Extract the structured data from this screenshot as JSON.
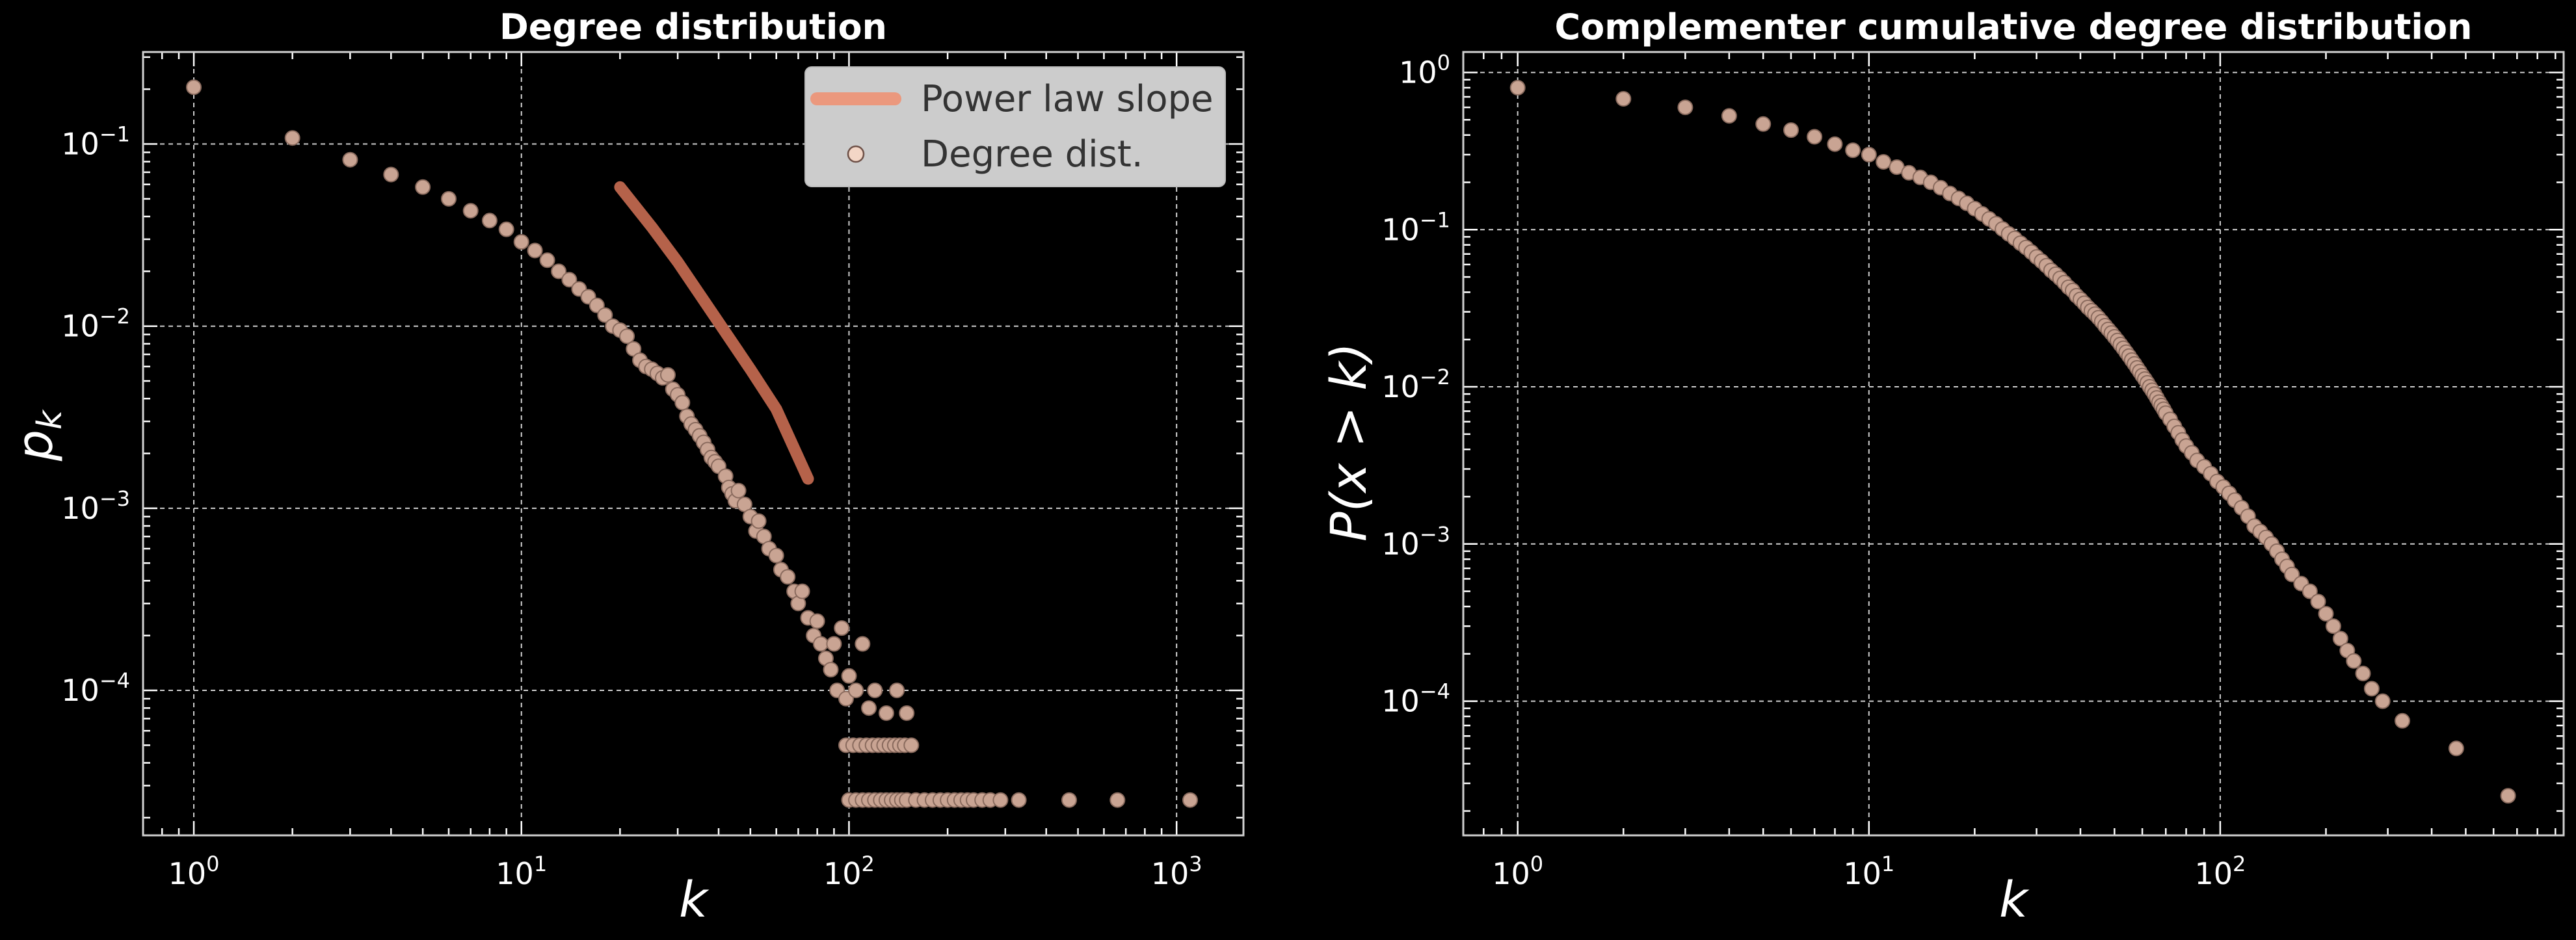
{
  "colors": {
    "background": "#000000",
    "marker_fill": "#c9a493",
    "marker_edge": "#8a6b5e",
    "fit_line": "#b5624a",
    "legend_line": "#eb987d",
    "legend_box": "#cccccc",
    "text": "#ffffff",
    "grid": "#d0d0d0"
  },
  "chart_data": [
    {
      "type": "scatter",
      "title": "Degree distribution",
      "xlabel": "k",
      "ylabel": "p_k",
      "xscale": "log",
      "yscale": "log",
      "xlim": [
        0.7,
        1600
      ],
      "ylim": [
        1.6e-05,
        0.32
      ],
      "x_ticks": [
        1,
        10,
        100,
        1000
      ],
      "x_tick_labels": [
        "10^0",
        "10^1",
        "10^2",
        "10^3"
      ],
      "y_ticks": [
        0.1,
        0.01,
        0.001,
        0.0001
      ],
      "y_tick_labels": [
        "10^-1",
        "10^-2",
        "10^-3",
        "10^-4"
      ],
      "grid": true,
      "legend_position": "top-right",
      "legend": [
        "Power law slope",
        "Degree dist."
      ],
      "series": [
        {
          "name": "Power law slope",
          "kind": "line",
          "points": [
            [
              20,
              0.058
            ],
            [
              25,
              0.035
            ],
            [
              30,
              0.0225
            ],
            [
              40,
              0.0105
            ],
            [
              50,
              0.0058
            ],
            [
              60,
              0.0035
            ],
            [
              75,
              0.00145
            ]
          ]
        },
        {
          "name": "Degree dist.",
          "kind": "scatter",
          "points": [
            [
              1,
              0.205
            ],
            [
              2,
              0.108
            ],
            [
              3,
              0.082
            ],
            [
              4,
              0.068
            ],
            [
              5,
              0.058
            ],
            [
              6,
              0.05
            ],
            [
              7,
              0.043
            ],
            [
              8,
              0.038
            ],
            [
              9,
              0.034
            ],
            [
              10,
              0.029
            ],
            [
              11,
              0.026
            ],
            [
              12,
              0.023
            ],
            [
              13,
              0.02
            ],
            [
              14,
              0.018
            ],
            [
              15,
              0.016
            ],
            [
              16,
              0.0145
            ],
            [
              17,
              0.013
            ],
            [
              18,
              0.0115
            ],
            [
              19,
              0.01
            ],
            [
              20,
              0.0095
            ],
            [
              21,
              0.0088
            ],
            [
              22,
              0.0075
            ],
            [
              23,
              0.0065
            ],
            [
              24,
              0.006
            ],
            [
              25,
              0.0058
            ],
            [
              26,
              0.0055
            ],
            [
              27,
              0.0052
            ],
            [
              28,
              0.0054
            ],
            [
              29,
              0.0045
            ],
            [
              30,
              0.0042
            ],
            [
              31,
              0.0038
            ],
            [
              32,
              0.0032
            ],
            [
              33,
              0.0029
            ],
            [
              34,
              0.0027
            ],
            [
              35,
              0.0025
            ],
            [
              36,
              0.0023
            ],
            [
              37,
              0.0021
            ],
            [
              38,
              0.0019
            ],
            [
              39,
              0.0018
            ],
            [
              40,
              0.0017
            ],
            [
              42,
              0.0015
            ],
            [
              43,
              0.0013
            ],
            [
              44,
              0.0012
            ],
            [
              45,
              0.0011
            ],
            [
              46,
              0.00125
            ],
            [
              48,
              0.00105
            ],
            [
              50,
              0.0009
            ],
            [
              52,
              0.00075
            ],
            [
              53,
              0.00085
            ],
            [
              55,
              0.0007
            ],
            [
              57,
              0.0006
            ],
            [
              60,
              0.00055
            ],
            [
              62,
              0.00046
            ],
            [
              65,
              0.00042
            ],
            [
              68,
              0.00035
            ],
            [
              70,
              0.0003
            ],
            [
              72,
              0.00035
            ],
            [
              75,
              0.00025
            ],
            [
              78,
              0.0002
            ],
            [
              80,
              0.00024
            ],
            [
              82,
              0.00018
            ],
            [
              85,
              0.00015
            ],
            [
              88,
              0.00013
            ],
            [
              90,
              0.00018
            ],
            [
              92,
              0.0001
            ],
            [
              95,
              0.00022
            ],
            [
              98,
              9e-05
            ],
            [
              100,
              0.00012
            ],
            [
              105,
              0.0001
            ],
            [
              110,
              0.00018
            ],
            [
              115,
              8e-05
            ],
            [
              120,
              0.0001
            ],
            [
              130,
              7.5e-05
            ],
            [
              140,
              0.0001
            ],
            [
              150,
              7.5e-05
            ],
            [
              98,
              5e-05
            ],
            [
              103,
              5e-05
            ],
            [
              108,
              5e-05
            ],
            [
              113,
              5e-05
            ],
            [
              118,
              5e-05
            ],
            [
              123,
              5e-05
            ],
            [
              128,
              5e-05
            ],
            [
              133,
              5e-05
            ],
            [
              138,
              5e-05
            ],
            [
              143,
              5e-05
            ],
            [
              148,
              5e-05
            ],
            [
              155,
              5e-05
            ],
            [
              100,
              2.5e-05
            ],
            [
              105,
              2.5e-05
            ],
            [
              110,
              2.5e-05
            ],
            [
              115,
              2.5e-05
            ],
            [
              120,
              2.5e-05
            ],
            [
              125,
              2.5e-05
            ],
            [
              130,
              2.5e-05
            ],
            [
              135,
              2.5e-05
            ],
            [
              140,
              2.5e-05
            ],
            [
              145,
              2.5e-05
            ],
            [
              150,
              2.5e-05
            ],
            [
              160,
              2.5e-05
            ],
            [
              170,
              2.5e-05
            ],
            [
              180,
              2.5e-05
            ],
            [
              190,
              2.5e-05
            ],
            [
              200,
              2.5e-05
            ],
            [
              210,
              2.5e-05
            ],
            [
              220,
              2.5e-05
            ],
            [
              230,
              2.5e-05
            ],
            [
              240,
              2.5e-05
            ],
            [
              255,
              2.5e-05
            ],
            [
              270,
              2.5e-05
            ],
            [
              290,
              2.5e-05
            ],
            [
              330,
              2.5e-05
            ],
            [
              470,
              2.5e-05
            ],
            [
              660,
              2.5e-05
            ],
            [
              1100,
              2.5e-05
            ]
          ]
        }
      ]
    },
    {
      "type": "scatter",
      "title": "Complementer cumulative degree distribution",
      "xlabel": "k",
      "ylabel": "P(x > k)",
      "xscale": "log",
      "yscale": "log",
      "xlim": [
        0.7,
        950
      ],
      "ylim": [
        1.4e-05,
        1.35
      ],
      "x_ticks": [
        1,
        10,
        100
      ],
      "x_tick_labels": [
        "10^0",
        "10^1",
        "10^2"
      ],
      "y_ticks": [
        1,
        0.1,
        0.01,
        0.001,
        0.0001
      ],
      "y_tick_labels": [
        "10^0",
        "10^-1",
        "10^-2",
        "10^-3",
        "10^-4"
      ],
      "grid": true,
      "series": [
        {
          "kind": "scatter",
          "points": [
            [
              1,
              0.8
            ],
            [
              2,
              0.68
            ],
            [
              3,
              0.6
            ],
            [
              4,
              0.53
            ],
            [
              5,
              0.47
            ],
            [
              6,
              0.43
            ],
            [
              7,
              0.39
            ],
            [
              8,
              0.35
            ],
            [
              9,
              0.32
            ],
            [
              10,
              0.3
            ],
            [
              11,
              0.27
            ],
            [
              12,
              0.25
            ],
            [
              13,
              0.23
            ],
            [
              14,
              0.215
            ],
            [
              15,
              0.2
            ],
            [
              16,
              0.185
            ],
            [
              17,
              0.17
            ],
            [
              18,
              0.158
            ],
            [
              19,
              0.147
            ],
            [
              20,
              0.136
            ],
            [
              21,
              0.126
            ],
            [
              22,
              0.117
            ],
            [
              23,
              0.109
            ],
            [
              24,
              0.101
            ],
            [
              25,
              0.094
            ],
            [
              26,
              0.088
            ],
            [
              27,
              0.082
            ],
            [
              28,
              0.077
            ],
            [
              29,
              0.072
            ],
            [
              30,
              0.067
            ],
            [
              31,
              0.063
            ],
            [
              32,
              0.059
            ],
            [
              33,
              0.055
            ],
            [
              34,
              0.052
            ],
            [
              35,
              0.049
            ],
            [
              36,
              0.046
            ],
            [
              37,
              0.043
            ],
            [
              38,
              0.041
            ],
            [
              39,
              0.038
            ],
            [
              40,
              0.036
            ],
            [
              41,
              0.034
            ],
            [
              42,
              0.032
            ],
            [
              43,
              0.0305
            ],
            [
              44,
              0.029
            ],
            [
              45,
              0.0275
            ],
            [
              46,
              0.026
            ],
            [
              47,
              0.0245
            ],
            [
              48,
              0.0232
            ],
            [
              49,
              0.022
            ],
            [
              50,
              0.0208
            ],
            [
              51,
              0.0197
            ],
            [
              52,
              0.0186
            ],
            [
              53,
              0.0176
            ],
            [
              54,
              0.0166
            ],
            [
              55,
              0.0157
            ],
            [
              56,
              0.0148
            ],
            [
              57,
              0.014
            ],
            [
              58,
              0.0132
            ],
            [
              59,
              0.0125
            ],
            [
              60,
              0.0118
            ],
            [
              61,
              0.0112
            ],
            [
              62,
              0.0106
            ],
            [
              63,
              0.01
            ],
            [
              64,
              0.0095
            ],
            [
              65,
              0.009
            ],
            [
              66,
              0.0085
            ],
            [
              67,
              0.008
            ],
            [
              68,
              0.0076
            ],
            [
              69,
              0.0072
            ],
            [
              70,
              0.0068
            ],
            [
              72,
              0.0062
            ],
            [
              74,
              0.0056
            ],
            [
              76,
              0.0051
            ],
            [
              78,
              0.0046
            ],
            [
              80,
              0.0042
            ],
            [
              83,
              0.0038
            ],
            [
              86,
              0.0034
            ],
            [
              90,
              0.0031
            ],
            [
              94,
              0.0028
            ],
            [
              98,
              0.0025
            ],
            [
              102,
              0.0023
            ],
            [
              106,
              0.0021
            ],
            [
              110,
              0.0019
            ],
            [
              115,
              0.0017
            ],
            [
              120,
              0.0015
            ],
            [
              125,
              0.0013
            ],
            [
              130,
              0.0012
            ],
            [
              135,
              0.0011
            ],
            [
              140,
              0.001
            ],
            [
              145,
              0.0009
            ],
            [
              150,
              0.0008
            ],
            [
              155,
              0.00072
            ],
            [
              160,
              0.00064
            ],
            [
              170,
              0.00056
            ],
            [
              180,
              0.0005
            ],
            [
              190,
              0.00043
            ],
            [
              200,
              0.00036
            ],
            [
              210,
              0.0003
            ],
            [
              220,
              0.00025
            ],
            [
              230,
              0.00021
            ],
            [
              240,
              0.00018
            ],
            [
              255,
              0.00015
            ],
            [
              270,
              0.00012
            ],
            [
              290,
              0.0001
            ],
            [
              330,
              7.5e-05
            ],
            [
              470,
              5e-05
            ],
            [
              660,
              2.5e-05
            ]
          ]
        }
      ]
    }
  ]
}
